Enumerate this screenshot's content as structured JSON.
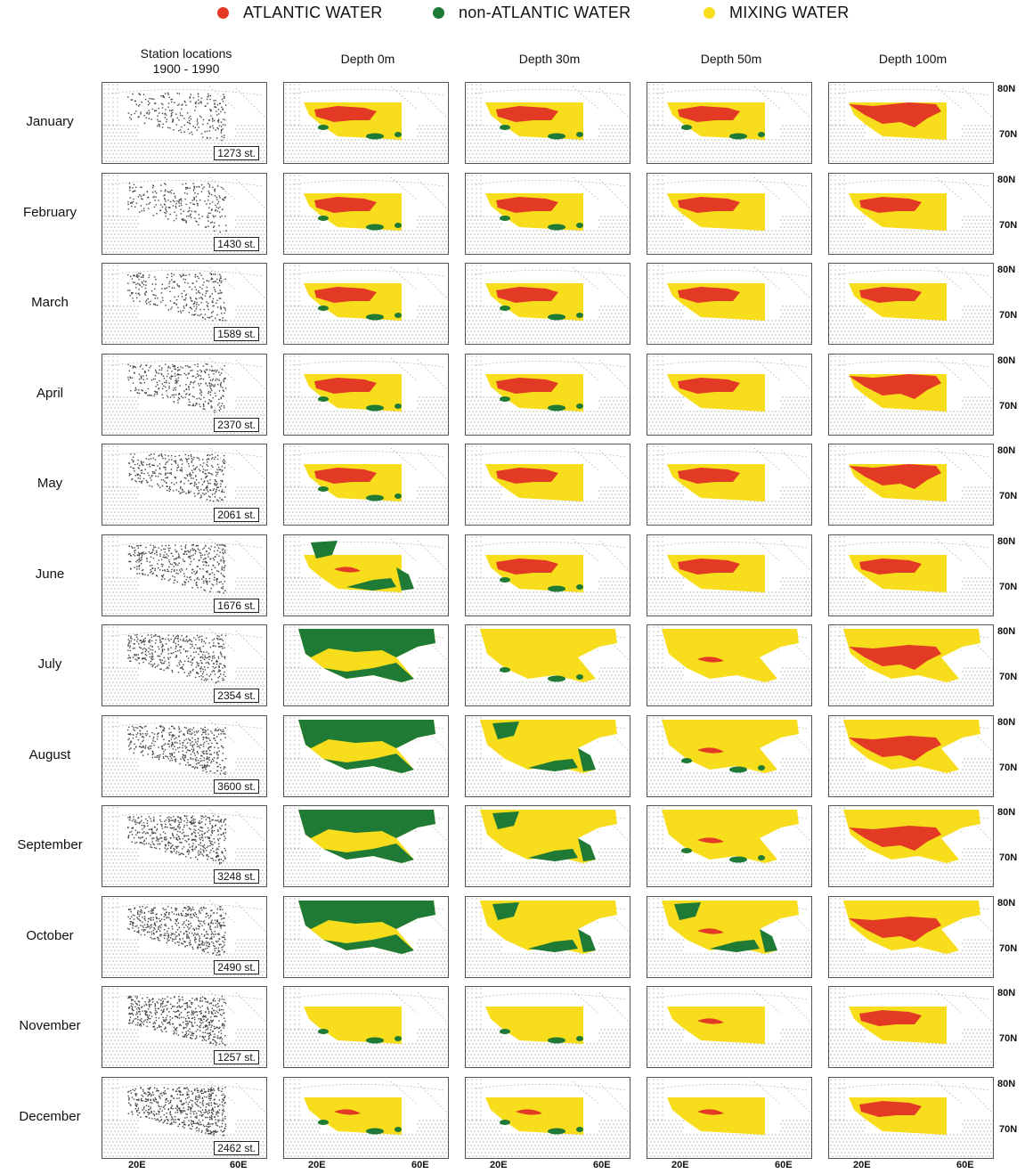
{
  "legend": {
    "atlantic": {
      "label": "ATLANTIC WATER",
      "color": "#e33a25"
    },
    "non_atlantic": {
      "label": "non-ATLANTIC WATER",
      "color": "#1e7a34"
    },
    "mixing": {
      "label": "MIXING WATER",
      "color": "#f7dd1c"
    }
  },
  "columns": {
    "stations": [
      "Station locations",
      "1900 - 1990"
    ],
    "depths": [
      "Depth  0m",
      "Depth  30m",
      "Depth  50m",
      "Depth  100m"
    ]
  },
  "latitude_labels": {
    "north": "80N",
    "south": "70N"
  },
  "longitude_labels": {
    "west": "20E",
    "east": "60E"
  },
  "months": [
    {
      "name": "January",
      "stations": "1273 st."
    },
    {
      "name": "February",
      "stations": "1430 st."
    },
    {
      "name": "March",
      "stations": "1589 st."
    },
    {
      "name": "April",
      "stations": "2370 st."
    },
    {
      "name": "May",
      "stations": "2061 st."
    },
    {
      "name": "June",
      "stations": "1676 st."
    },
    {
      "name": "July",
      "stations": "2354 st."
    },
    {
      "name": "August",
      "stations": "3600 st."
    },
    {
      "name": "September",
      "stations": "3248 st."
    },
    {
      "name": "October",
      "stations": "2490 st."
    },
    {
      "name": "November",
      "stations": "1257 st."
    },
    {
      "name": "December",
      "stations": "2462 st."
    }
  ],
  "water_maps": [
    {
      "month": "January",
      "depth_0": {
        "atlantic": "medium",
        "non_atlantic": "low"
      },
      "depth_30": {
        "atlantic": "medium",
        "non_atlantic": "low"
      },
      "depth_50": {
        "atlantic": "medium",
        "non_atlantic": "low"
      },
      "depth_100": {
        "atlantic": "high",
        "non_atlantic": "none"
      }
    },
    {
      "month": "February",
      "depth_0": {
        "atlantic": "medium",
        "non_atlantic": "low"
      },
      "depth_30": {
        "atlantic": "medium",
        "non_atlantic": "low"
      },
      "depth_50": {
        "atlantic": "medium",
        "non_atlantic": "none"
      },
      "depth_100": {
        "atlantic": "medium",
        "non_atlantic": "none"
      }
    },
    {
      "month": "March",
      "depth_0": {
        "atlantic": "medium",
        "non_atlantic": "low"
      },
      "depth_30": {
        "atlantic": "medium",
        "non_atlantic": "low"
      },
      "depth_50": {
        "atlantic": "medium",
        "non_atlantic": "none"
      },
      "depth_100": {
        "atlantic": "medium",
        "non_atlantic": "none"
      }
    },
    {
      "month": "April",
      "depth_0": {
        "atlantic": "medium",
        "non_atlantic": "low"
      },
      "depth_30": {
        "atlantic": "medium",
        "non_atlantic": "low"
      },
      "depth_50": {
        "atlantic": "medium",
        "non_atlantic": "none"
      },
      "depth_100": {
        "atlantic": "high",
        "non_atlantic": "none"
      }
    },
    {
      "month": "May",
      "depth_0": {
        "atlantic": "medium",
        "non_atlantic": "low"
      },
      "depth_30": {
        "atlantic": "medium",
        "non_atlantic": "none"
      },
      "depth_50": {
        "atlantic": "medium",
        "non_atlantic": "none"
      },
      "depth_100": {
        "atlantic": "high",
        "non_atlantic": "none"
      }
    },
    {
      "month": "June",
      "depth_0": {
        "atlantic": "low",
        "non_atlantic": "medium"
      },
      "depth_30": {
        "atlantic": "medium",
        "non_atlantic": "low"
      },
      "depth_50": {
        "atlantic": "medium",
        "non_atlantic": "none"
      },
      "depth_100": {
        "atlantic": "medium",
        "non_atlantic": "none"
      }
    },
    {
      "month": "July",
      "depth_0": {
        "atlantic": "none",
        "non_atlantic": "high"
      },
      "depth_30": {
        "atlantic": "none",
        "non_atlantic": "low"
      },
      "depth_50": {
        "atlantic": "low",
        "non_atlantic": "none"
      },
      "depth_100": {
        "atlantic": "high",
        "non_atlantic": "none"
      }
    },
    {
      "month": "August",
      "depth_0": {
        "atlantic": "none",
        "non_atlantic": "high"
      },
      "depth_30": {
        "atlantic": "none",
        "non_atlantic": "medium"
      },
      "depth_50": {
        "atlantic": "low",
        "non_atlantic": "low"
      },
      "depth_100": {
        "atlantic": "high",
        "non_atlantic": "none"
      }
    },
    {
      "month": "September",
      "depth_0": {
        "atlantic": "none",
        "non_atlantic": "high"
      },
      "depth_30": {
        "atlantic": "none",
        "non_atlantic": "medium"
      },
      "depth_50": {
        "atlantic": "low",
        "non_atlantic": "low"
      },
      "depth_100": {
        "atlantic": "high",
        "non_atlantic": "none"
      }
    },
    {
      "month": "October",
      "depth_0": {
        "atlantic": "none",
        "non_atlantic": "high"
      },
      "depth_30": {
        "atlantic": "none",
        "non_atlantic": "medium"
      },
      "depth_50": {
        "atlantic": "low",
        "non_atlantic": "medium"
      },
      "depth_100": {
        "atlantic": "high",
        "non_atlantic": "none"
      }
    },
    {
      "month": "November",
      "depth_0": {
        "atlantic": "none",
        "non_atlantic": "low"
      },
      "depth_30": {
        "atlantic": "none",
        "non_atlantic": "low"
      },
      "depth_50": {
        "atlantic": "low",
        "non_atlantic": "none"
      },
      "depth_100": {
        "atlantic": "medium",
        "non_atlantic": "none"
      }
    },
    {
      "month": "December",
      "depth_0": {
        "atlantic": "low",
        "non_atlantic": "low"
      },
      "depth_30": {
        "atlantic": "low",
        "non_atlantic": "low"
      },
      "depth_50": {
        "atlantic": "low",
        "non_atlantic": "none"
      },
      "depth_100": {
        "atlantic": "medium",
        "non_atlantic": "none"
      }
    }
  ]
}
